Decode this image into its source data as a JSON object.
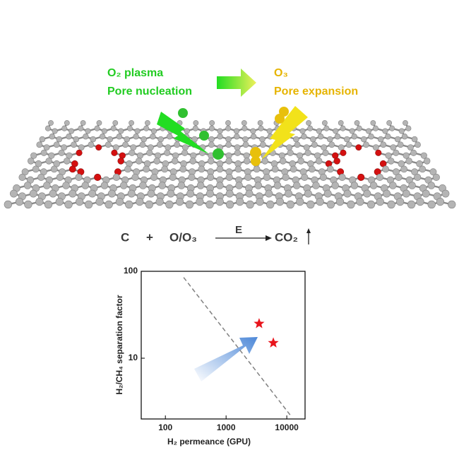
{
  "diagram": {
    "left_label": "O₂ plasma",
    "left_caption": "Pore nucleation",
    "right_label": "O₃",
    "right_caption": "Pore expansion"
  },
  "equation": {
    "reactant_1": "C",
    "plus": "+",
    "reactant_2": "O/O₃",
    "condition": "E",
    "product": "CO₂"
  },
  "chart_data": {
    "type": "scatter",
    "x_label": "H₂ permeance (GPU)",
    "y_label": "H₂/CH₄ separation factor",
    "xlim": [
      40,
      20000
    ],
    "ylim": [
      2,
      100
    ],
    "xticks": [
      100,
      1000,
      10000
    ],
    "yticks": [
      10,
      100
    ],
    "log_x": true,
    "log_y": true,
    "grid": false,
    "series": [
      {
        "x": [
          3500,
          6000
        ],
        "values": [
          25,
          15
        ],
        "color": "#e8141c",
        "marker": "star"
      }
    ],
    "reference_line": {
      "x": [
        200,
        11500
      ],
      "values": [
        85,
        2.2
      ],
      "color": "#808080",
      "dashed": true
    }
  }
}
